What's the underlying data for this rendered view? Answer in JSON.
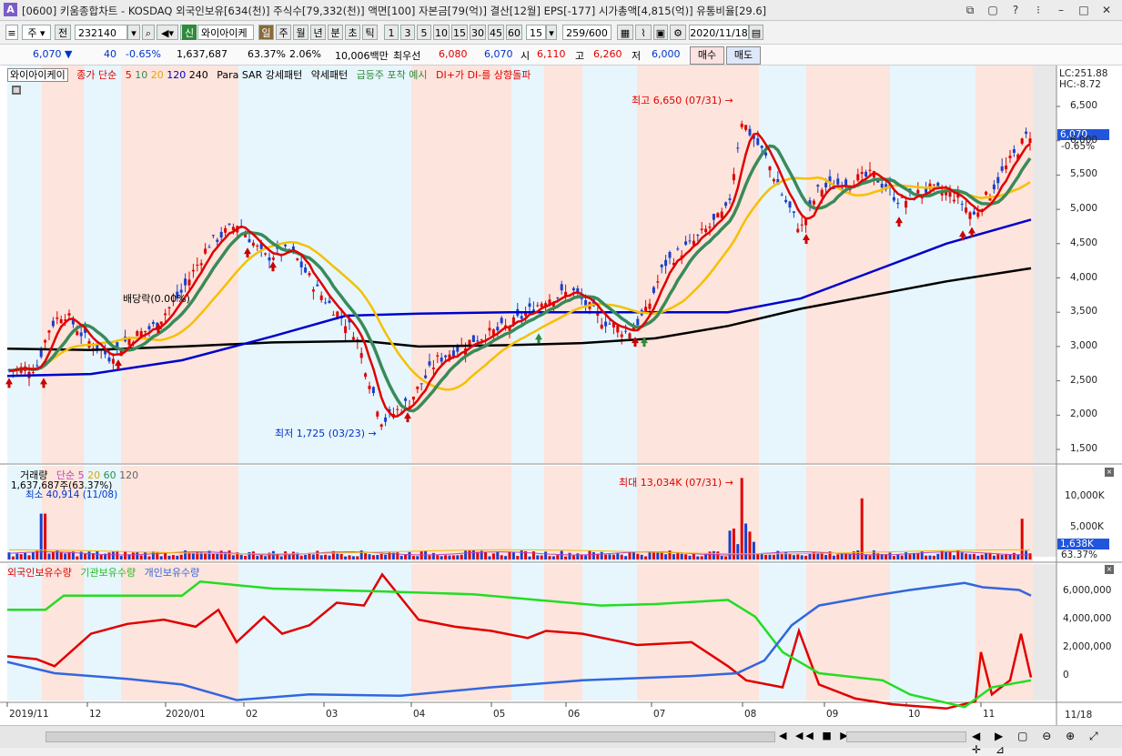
{
  "title": "[0600] 키움종합차트 - KOSDAQ 외국인보유[634(천)] 주식수[79,332(천)] 액면[100] 자본금[79(억)] 결산[12월] EPS[-177] 시가총액[4,815(억)] 유통비율[29.6]",
  "app_icon": "A",
  "window_buttons": [
    "⧉",
    "▢",
    "?",
    "⁝",
    "–",
    "□",
    "✕"
  ],
  "toolbar": {
    "market_type": "주",
    "prev": "전",
    "code": "232140",
    "stock_name": "와이아이케",
    "credit_badge": "신",
    "periods": [
      "일",
      "주",
      "월",
      "년",
      "분",
      "초",
      "틱"
    ],
    "intervals": [
      "1",
      "3",
      "5",
      "10",
      "15",
      "30",
      "45",
      "60"
    ],
    "interval_value": "15",
    "count": "259/600",
    "date": "2020/11/18"
  },
  "quote": {
    "price": "6,070",
    "change": "40",
    "change_pct": "-0.65%",
    "volume": "1,637,687",
    "vol_ratio": "63.37%",
    "turnover": "2.06%",
    "amount": "10,006백만",
    "best_ask_label": "최우선",
    "best_ask": "6,080",
    "best_bid": "6,070",
    "open_label": "시",
    "open": "6,110",
    "high_label": "고",
    "high": "6,260",
    "low_label": "저",
    "low": "6,000",
    "buy_label": "매수",
    "sell_label": "매도"
  },
  "legend": {
    "name": "와이아이케이",
    "ma_label": "종가 단순",
    "ma_periods": [
      "5",
      "10",
      "20",
      "120",
      "240"
    ],
    "ma_colors": [
      "#e00000",
      "#2e8b57",
      "#f0b800",
      "#0000cc",
      "#000000"
    ],
    "parasar": "Para SAR 강세패턴",
    "weak": "약세패턴",
    "surge": "급등주 포착 예시",
    "dmi": "DI+가 DI-를 상향돌파"
  },
  "price_panel": {
    "lc": "LC:251.88",
    "hc": "HC:-8.72",
    "y_ticks": [
      "6,500",
      "6,000",
      "5,500",
      "5,000",
      "4,500",
      "4,000",
      "3,500",
      "3,000",
      "2,500",
      "2,000",
      "1,500"
    ],
    "current_price": "6,070",
    "current_pct": "-0.65%",
    "high_annot": "최고 6,650 (07/31)",
    "low_annot": "최저 1,725 (03/23)",
    "dividend_annot": "배당락(0.00%)"
  },
  "volume_panel": {
    "label": "거래량",
    "ma_label": "단순",
    "ma_periods": [
      "5",
      "20",
      "60",
      "120"
    ],
    "current": "1,637,687주(63.37%)",
    "min_annot": "최소 40,914 (11/08)",
    "max_annot": "최대 13,034K (07/31)",
    "y_ticks": [
      "10,000K",
      "5,000K"
    ],
    "current_box": "1,638K",
    "current_pct": "63.37%"
  },
  "holding_panel": {
    "series": [
      "외국인보유수량",
      "기관보유수량",
      "개인보유수량"
    ],
    "colors": [
      "#e00000",
      "#22dd22",
      "#3366dd"
    ],
    "y_ticks": [
      "6,000,000",
      "4,000,000",
      "2,000,000",
      "0"
    ]
  },
  "x_axis": {
    "labels": [
      "2019/11",
      "12",
      "2020/01",
      "02",
      "03",
      "04",
      "05",
      "06",
      "07",
      "08",
      "09",
      "10",
      "11"
    ],
    "right_label": "11/18"
  }
}
